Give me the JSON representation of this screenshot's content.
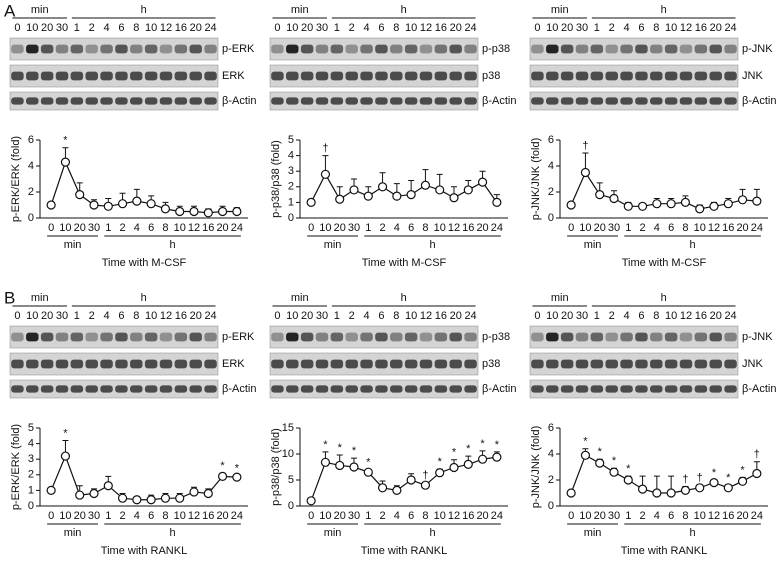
{
  "panels": [
    {
      "label": "A"
    },
    {
      "label": "B"
    }
  ],
  "chart_data": [
    {
      "type": "line",
      "ylabel": "p-ERK/ERK (fold)",
      "xlabel": "Time with M-CSF",
      "groups": [
        "min",
        "h"
      ],
      "categories": [
        "0",
        "10",
        "20",
        "30",
        "1",
        "2",
        "4",
        "6",
        "8",
        "10",
        "12",
        "16",
        "20",
        "24"
      ],
      "ylim": [
        0,
        6
      ],
      "yticks": [
        0,
        2,
        4,
        6
      ],
      "blot_rows": [
        "p-ERK",
        "ERK",
        "β-Actin"
      ],
      "series": [
        {
          "values": [
            1.0,
            4.3,
            1.8,
            1.0,
            0.9,
            1.1,
            1.3,
            1.1,
            0.7,
            0.5,
            0.5,
            0.4,
            0.5,
            0.5
          ],
          "errors": [
            0,
            1.1,
            0.9,
            0.4,
            0.6,
            0.8,
            0.9,
            0.6,
            0.5,
            0.4,
            0.4,
            0.3,
            0.4,
            0.3
          ],
          "markers": [
            null,
            "*",
            null,
            null,
            null,
            null,
            null,
            null,
            null,
            null,
            null,
            null,
            null,
            null
          ]
        }
      ]
    },
    {
      "type": "line",
      "ylabel": "p-p38/p38 (fold)",
      "xlabel": "Time with M-CSF",
      "groups": [
        "min",
        "h"
      ],
      "categories": [
        "0",
        "10",
        "20",
        "30",
        "1",
        "2",
        "4",
        "6",
        "8",
        "10",
        "12",
        "16",
        "20",
        "24"
      ],
      "ylim": [
        0,
        5
      ],
      "yticks": [
        0,
        1,
        2,
        3,
        4,
        5
      ],
      "blot_rows": [
        "p-p38",
        "p38",
        "β-Actin"
      ],
      "series": [
        {
          "values": [
            1.0,
            2.8,
            1.2,
            1.8,
            1.4,
            2.0,
            1.4,
            1.5,
            2.1,
            1.8,
            1.3,
            1.8,
            2.3,
            1.0
          ],
          "errors": [
            0,
            1.2,
            0.8,
            0.7,
            0.6,
            0.9,
            0.8,
            0.9,
            1.0,
            1.0,
            0.7,
            0.6,
            0.7,
            0.5
          ],
          "markers": [
            null,
            "†",
            null,
            null,
            null,
            null,
            null,
            null,
            null,
            null,
            null,
            null,
            null,
            null
          ]
        }
      ]
    },
    {
      "type": "line",
      "ylabel": "p-JNK/JNK (fold)",
      "xlabel": "Time with M-CSF",
      "groups": [
        "min",
        "h"
      ],
      "categories": [
        "0",
        "10",
        "20",
        "30",
        "1",
        "2",
        "4",
        "6",
        "8",
        "10",
        "12",
        "16",
        "20",
        "24"
      ],
      "ylim": [
        0,
        6
      ],
      "yticks": [
        0,
        2,
        4,
        6
      ],
      "blot_rows": [
        "p-JNK",
        "JNK",
        "β-Actin"
      ],
      "series": [
        {
          "values": [
            1.0,
            3.5,
            1.8,
            1.5,
            0.9,
            0.9,
            1.1,
            1.1,
            1.2,
            0.7,
            0.9,
            1.1,
            1.4,
            1.3
          ],
          "errors": [
            0,
            1.5,
            0.9,
            0.6,
            0.3,
            0.2,
            0.4,
            0.4,
            0.5,
            0.3,
            0.3,
            0.4,
            0.8,
            0.9
          ],
          "markers": [
            null,
            "†",
            null,
            null,
            null,
            null,
            null,
            null,
            null,
            null,
            null,
            null,
            null,
            null
          ]
        }
      ]
    },
    {
      "type": "line",
      "ylabel": "p-ERK/ERK (fold)",
      "xlabel": "Time with RANKL",
      "groups": [
        "min",
        "h"
      ],
      "categories": [
        "0",
        "10",
        "20",
        "30",
        "1",
        "2",
        "4",
        "6",
        "8",
        "10",
        "12",
        "16",
        "20",
        "24"
      ],
      "ylim": [
        0,
        5
      ],
      "yticks": [
        0,
        1,
        2,
        3,
        4,
        5
      ],
      "blot_rows": [
        "p-ERK",
        "ERK",
        "β-Actin"
      ],
      "series": [
        {
          "values": [
            1.0,
            3.2,
            0.7,
            0.8,
            1.3,
            0.5,
            0.4,
            0.4,
            0.5,
            0.5,
            0.9,
            0.8,
            1.9,
            1.85
          ],
          "errors": [
            0,
            1.0,
            0.6,
            0.3,
            0.6,
            0.3,
            0.2,
            0.3,
            0.3,
            0.3,
            0.3,
            0.3,
            0.2,
            0.1
          ],
          "markers": [
            null,
            "*",
            null,
            null,
            null,
            null,
            null,
            null,
            null,
            null,
            null,
            null,
            "*",
            "*"
          ]
        }
      ]
    },
    {
      "type": "line",
      "ylabel": "p-p38/p38 (fold)",
      "xlabel": "Time with RANKL",
      "groups": [
        "min",
        "h"
      ],
      "categories": [
        "0",
        "10",
        "20",
        "30",
        "1",
        "2",
        "4",
        "6",
        "8",
        "10",
        "12",
        "16",
        "20",
        "24"
      ],
      "ylim": [
        0,
        15
      ],
      "yticks": [
        0,
        5,
        10,
        15
      ],
      "blot_rows": [
        "p-p38",
        "p38",
        "β-Actin"
      ],
      "series": [
        {
          "values": [
            1.0,
            8.4,
            7.8,
            7.5,
            6.5,
            3.5,
            3.0,
            5.0,
            4.0,
            6.4,
            7.4,
            8.0,
            9.0,
            9.4
          ],
          "errors": [
            0,
            2.0,
            2.0,
            1.7,
            0.5,
            1.3,
            0.9,
            1.2,
            0.5,
            0.7,
            1.5,
            1.6,
            1.6,
            1.0
          ],
          "markers": [
            null,
            "*",
            "*",
            "*",
            "*",
            null,
            null,
            null,
            "†",
            "*",
            "*",
            "*",
            "*",
            "*"
          ]
        }
      ]
    },
    {
      "type": "line",
      "ylabel": "p-JNK/JNK (fold)",
      "xlabel": "Time with RANKL",
      "groups": [
        "min",
        "h"
      ],
      "categories": [
        "0",
        "10",
        "20",
        "30",
        "1",
        "2",
        "4",
        "6",
        "8",
        "10",
        "12",
        "16",
        "20",
        "24"
      ],
      "ylim": [
        0,
        6
      ],
      "yticks": [
        0,
        2,
        4,
        6
      ],
      "blot_rows": [
        "p-JNK",
        "JNK",
        "β-Actin"
      ],
      "series": [
        {
          "values": [
            1.0,
            3.9,
            3.3,
            2.6,
            2.0,
            1.3,
            1.0,
            1.0,
            1.2,
            1.4,
            1.8,
            1.4,
            1.9,
            2.5
          ],
          "errors": [
            0,
            0.5,
            0.3,
            0.3,
            0.3,
            1.0,
            1.3,
            1.3,
            0.3,
            0.2,
            0.2,
            0.2,
            0.3,
            0.9
          ],
          "markers": [
            null,
            "*",
            "*",
            "*",
            "*",
            null,
            null,
            null,
            "†",
            "†",
            "*",
            "*",
            "*",
            "†"
          ]
        }
      ]
    }
  ]
}
